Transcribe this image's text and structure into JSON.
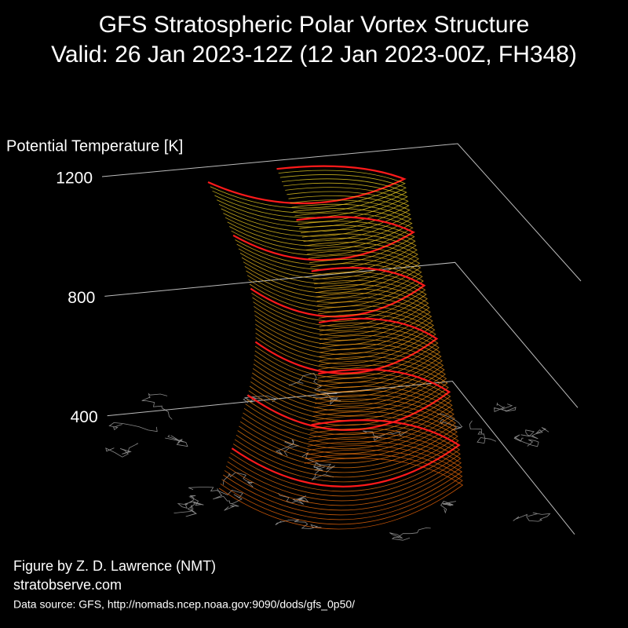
{
  "chart_data": {
    "type": "surface3d",
    "title": "GFS Stratospheric Polar Vortex Structure",
    "subtitle": "Valid: 26 Jan 2023-12Z  (12 Jan 2023-00Z, FH348)",
    "zlabel": "Potential Temperature [K]",
    "zlim": [
      0,
      1200
    ],
    "zticks": [
      400,
      800,
      1200
    ],
    "grid": true,
    "credits": [
      "Figure by Z. D. Lawrence (NMT)",
      "stratobserve.com"
    ],
    "source": "Data source: GFS, http://nomads.ncep.noaa.gov:9090/dods/gfs_0p50/"
  }
}
